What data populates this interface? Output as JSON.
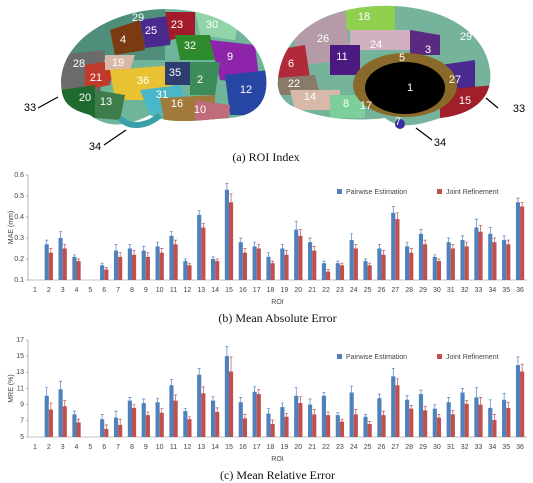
{
  "roi_index": {
    "left_labels": [
      "29",
      "23",
      "30",
      "4",
      "25",
      "32",
      "9",
      "28",
      "19",
      "21",
      "36",
      "35",
      "2",
      "12",
      "31",
      "16",
      "20",
      "13",
      "10",
      "33",
      "34"
    ],
    "right_labels": [
      "18",
      "26",
      "24",
      "29",
      "3",
      "11",
      "5",
      "6",
      "1",
      "27",
      "22",
      "14",
      "8",
      "17",
      "15",
      "7",
      "33",
      "34"
    ],
    "caption": "(a) ROI Index"
  },
  "chart_data": [
    {
      "type": "bar",
      "caption": "(b) Mean Absolute Error",
      "x_label": "ROI",
      "y_label": "MAE (mm)",
      "categories": [
        "1",
        "2",
        "3",
        "4",
        "5",
        "6",
        "7",
        "8",
        "9",
        "10",
        "11",
        "12",
        "13",
        "14",
        "15",
        "16",
        "17",
        "18",
        "19",
        "20",
        "21",
        "22",
        "23",
        "24",
        "25",
        "26",
        "27",
        "28",
        "29",
        "30",
        "31",
        "32",
        "33",
        "34",
        "35",
        "36"
      ],
      "ylim": [
        0.1,
        0.6
      ],
      "yticks": [
        0.1,
        0.2,
        0.3,
        0.4,
        0.5,
        0.6
      ],
      "legend": "top-right",
      "series": [
        {
          "name": "Pairwise Estimation",
          "color": "#4f81bd",
          "values": [
            null,
            0.27,
            0.3,
            0.21,
            null,
            0.17,
            0.24,
            0.25,
            0.24,
            0.26,
            0.31,
            0.19,
            0.41,
            0.2,
            0.53,
            0.28,
            0.26,
            0.21,
            0.25,
            0.34,
            0.28,
            0.18,
            0.18,
            0.29,
            0.19,
            0.25,
            0.42,
            0.26,
            0.32,
            0.21,
            0.28,
            0.29,
            0.35,
            0.32,
            0.29,
            0.47
          ],
          "errors": [
            null,
            0.02,
            0.03,
            0.01,
            null,
            0.01,
            0.03,
            0.02,
            0.02,
            0.02,
            0.02,
            0.01,
            0.02,
            0.01,
            0.03,
            0.02,
            0.02,
            0.02,
            0.02,
            0.04,
            0.02,
            0.01,
            0.01,
            0.03,
            0.01,
            0.02,
            0.03,
            0.02,
            0.02,
            0.01,
            0.02,
            0.02,
            0.04,
            0.03,
            0.02,
            0.02
          ]
        },
        {
          "name": "Joint Refinement",
          "color": "#c0504d",
          "values": [
            null,
            0.23,
            0.25,
            0.19,
            null,
            0.15,
            0.21,
            0.22,
            0.21,
            0.23,
            0.27,
            0.17,
            0.35,
            0.19,
            0.47,
            0.23,
            0.25,
            0.18,
            0.22,
            0.31,
            0.24,
            0.14,
            0.17,
            0.25,
            0.17,
            0.22,
            0.39,
            0.23,
            0.27,
            0.19,
            0.25,
            0.26,
            0.33,
            0.28,
            0.27,
            0.45
          ],
          "errors": [
            null,
            0.02,
            0.02,
            0.01,
            null,
            0.01,
            0.02,
            0.02,
            0.02,
            0.02,
            0.02,
            0.01,
            0.02,
            0.01,
            0.04,
            0.02,
            0.02,
            0.01,
            0.02,
            0.03,
            0.02,
            0.01,
            0.01,
            0.02,
            0.01,
            0.02,
            0.03,
            0.02,
            0.02,
            0.01,
            0.02,
            0.02,
            0.03,
            0.02,
            0.02,
            0.02
          ]
        }
      ]
    },
    {
      "type": "bar",
      "caption": "(c) Mean Relative Error",
      "x_label": "ROI",
      "y_label": "MRE (%)",
      "categories": [
        "1",
        "2",
        "3",
        "4",
        "5",
        "6",
        "7",
        "8",
        "9",
        "10",
        "11",
        "12",
        "13",
        "14",
        "15",
        "16",
        "17",
        "18",
        "19",
        "20",
        "21",
        "22",
        "23",
        "24",
        "25",
        "26",
        "27",
        "28",
        "29",
        "30",
        "31",
        "32",
        "33",
        "34",
        "35",
        "36"
      ],
      "ylim": [
        5,
        17
      ],
      "yticks": [
        5,
        7,
        9,
        11,
        13,
        15,
        17
      ],
      "legend": "top-right",
      "series": [
        {
          "name": "Pairwise Estimation",
          "color": "#4f81bd",
          "values": [
            null,
            10.1,
            10.9,
            7.8,
            null,
            7.2,
            7.4,
            9.5,
            9.2,
            9.3,
            11.4,
            8.2,
            12.7,
            9.5,
            15.0,
            9.3,
            10.6,
            7.9,
            8.7,
            10.1,
            9.0,
            10.1,
            7.7,
            10.5,
            7.5,
            9.8,
            12.5,
            9.6,
            10.3,
            8.5,
            9.3,
            10.5,
            9.9,
            8.6,
            9.6,
            13.9
          ],
          "errors": [
            null,
            1.0,
            1.0,
            0.4,
            null,
            0.6,
            0.8,
            0.4,
            0.5,
            0.5,
            0.7,
            0.3,
            0.8,
            0.5,
            1.2,
            0.6,
            0.6,
            0.6,
            0.5,
            1.0,
            0.7,
            0.4,
            0.3,
            0.8,
            0.3,
            0.5,
            1.0,
            0.5,
            0.5,
            0.5,
            0.6,
            0.5,
            1.2,
            1.0,
            0.8,
            1.0
          ]
        },
        {
          "name": "Joint Refinement",
          "color": "#c0504d",
          "values": [
            null,
            8.4,
            8.8,
            6.8,
            null,
            6.0,
            6.5,
            8.6,
            7.7,
            8.0,
            9.5,
            7.2,
            10.4,
            8.1,
            13.1,
            7.3,
            10.3,
            6.6,
            7.5,
            9.2,
            7.8,
            7.7,
            6.9,
            7.8,
            6.6,
            7.7,
            11.4,
            8.5,
            8.3,
            7.4,
            7.8,
            9.1,
            9.0,
            7.1,
            8.6,
            13.1
          ],
          "errors": [
            null,
            0.8,
            0.7,
            0.4,
            null,
            0.5,
            0.7,
            0.4,
            0.4,
            0.5,
            0.7,
            0.3,
            0.8,
            0.5,
            1.8,
            0.5,
            0.6,
            0.5,
            0.4,
            0.8,
            0.6,
            0.4,
            0.3,
            0.6,
            0.3,
            0.5,
            0.8,
            0.4,
            0.5,
            0.4,
            0.5,
            0.4,
            0.9,
            0.7,
            0.7,
            0.9
          ]
        }
      ]
    }
  ]
}
